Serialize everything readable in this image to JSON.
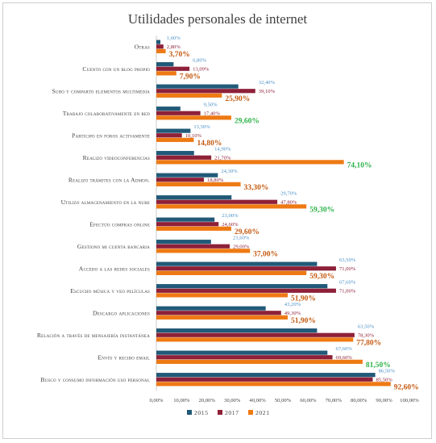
{
  "chart_data": {
    "type": "bar",
    "orientation": "horizontal",
    "title": "Utilidades personales de internet",
    "categories": [
      "Otras",
      "Cuento con un blog propio",
      "Subo y comparto elementos multimedia",
      "Trabajo colaborativamente en red",
      "Participo en foros activamente",
      "Realizo videoconferencias",
      "Realizo trámites con la Admon.",
      "Utilizo almacenamiento en la nube",
      "Efectúo compras online",
      "Gestiono mi cuenta bancaria",
      "Accedo a las redes sociales",
      "Escucho música y veo películas",
      "Descargo aplicaciones",
      "Relación a través de mensajería instantánea",
      "Envío y recibo email",
      "Busco y consumo información uso personal"
    ],
    "series": [
      {
        "name": "2015",
        "color": "#215a78",
        "label_color": "#4a90c8",
        "values": [
          1.6,
          6.8,
          32.4,
          9.5,
          13.5,
          14.9,
          24.3,
          29.7,
          23.0,
          21.6,
          63.5,
          67.6,
          43.2,
          63.5,
          67.6,
          86.5
        ],
        "labels": [
          "1,60%",
          "6,80%",
          "32,40%",
          "9,50%",
          "13,50%",
          "14,90%",
          "24,30%",
          "29,70%",
          "23,00%",
          "21,60%",
          "63,50%",
          "67,60%",
          "43,20%",
          "63,50%",
          "67,60%",
          "86,50%"
        ]
      },
      {
        "name": "2017",
        "color": "#8e2038",
        "label_color": "#8e2038",
        "values": [
          2.8,
          13.09,
          39.1,
          17.4,
          10.1,
          21.7,
          18.8,
          47.8,
          24.6,
          29.0,
          71.0,
          71.0,
          49.3,
          78.3,
          69.6,
          85.5
        ],
        "labels": [
          "2,80%",
          "13,09%",
          "39,10%",
          "17,40%",
          "10,10%",
          "21,70%",
          "18,80%",
          "47,80%",
          "24,60%",
          "29,00%",
          "71,00%",
          "71,00%",
          "49,30%",
          "78,30%",
          "69,60%",
          "85,50%"
        ]
      },
      {
        "name": "2021",
        "color": "#ee7a14",
        "values": [
          3.7,
          7.9,
          25.9,
          29.6,
          14.8,
          74.1,
          33.3,
          59.3,
          29.6,
          37.0,
          59.3,
          51.9,
          51.9,
          77.8,
          81.5,
          92.6
        ],
        "labels": [
          "3,70%",
          "7,90%",
          "25,90%",
          "29,60%",
          "14,80%",
          "74,10%",
          "33,30%",
          "59,30%",
          "29,60%",
          "37,00%",
          "59,30%",
          "51,90%",
          "51,90%",
          "77,80%",
          "81,50%",
          "92,60%"
        ],
        "label_colors": [
          "#c55a11",
          "#c55a11",
          "#c55a11",
          "#2eb24a",
          "#c55a11",
          "#2eb24a",
          "#c55a11",
          "#2eb24a",
          "#c55a11",
          "#c55a11",
          "#c55a11",
          "#c55a11",
          "#c55a11",
          "#c55a11",
          "#2eb24a",
          "#c55a11"
        ]
      }
    ],
    "x_ticks": [
      "0,00%",
      "10,00%",
      "20,00%",
      "30,00%",
      "40,00%",
      "50,00%",
      "60,00%",
      "70,00%",
      "80,00%",
      "90,00%",
      "100,00%"
    ],
    "xlim": [
      0,
      100
    ],
    "grid": false,
    "legend_position": "bottom"
  }
}
